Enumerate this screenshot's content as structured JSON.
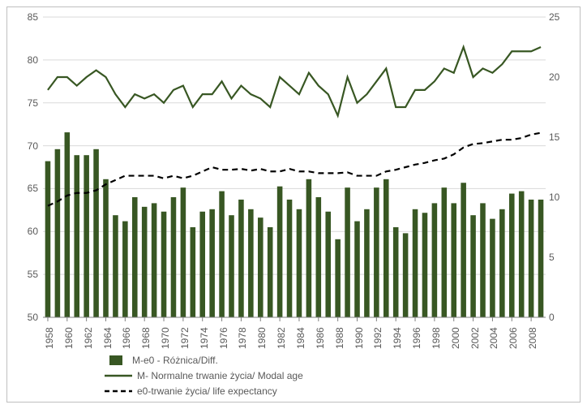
{
  "chart": {
    "type": "bar+line_dual_axis",
    "background_color": "#ffffff",
    "border_color": "#bfbfbf",
    "grid_color": "#d9d9d9",
    "axis_font_color": "#595959",
    "axis_font_size": 12,
    "left_axis": {
      "min": 50,
      "max": 85,
      "step": 5
    },
    "right_axis": {
      "min": 0,
      "max": 25,
      "step": 5
    },
    "years": [
      1958,
      1959,
      1960,
      1961,
      1962,
      1963,
      1964,
      1965,
      1966,
      1967,
      1968,
      1969,
      1970,
      1971,
      1972,
      1973,
      1974,
      1975,
      1976,
      1977,
      1978,
      1979,
      1980,
      1981,
      1982,
      1983,
      1984,
      1985,
      1986,
      1987,
      1988,
      1989,
      1990,
      1991,
      1992,
      1993,
      1994,
      1995,
      1996,
      1997,
      1998,
      1999,
      2000,
      2001,
      2002,
      2003,
      2004,
      2005,
      2006,
      2007,
      2008,
      2009
    ],
    "x_ticks": [
      1958,
      1960,
      1962,
      1964,
      1966,
      1968,
      1970,
      1972,
      1974,
      1976,
      1978,
      1980,
      1982,
      1984,
      1986,
      1988,
      1990,
      1992,
      1994,
      1996,
      1998,
      2000,
      2002,
      2004,
      2006,
      2008
    ],
    "series": {
      "bars": {
        "name_key": "legend.bars",
        "color": "#385723",
        "axis": "right",
        "bar_width_frac": 0.55,
        "values": [
          13.0,
          14.0,
          15.4,
          13.5,
          13.5,
          14.0,
          11.5,
          8.5,
          8.0,
          10.0,
          9.2,
          9.5,
          8.8,
          10.0,
          10.8,
          7.5,
          8.8,
          9.0,
          10.5,
          8.5,
          9.8,
          9.0,
          8.3,
          7.5,
          10.9,
          9.8,
          9.0,
          11.5,
          10.0,
          8.8,
          6.5,
          10.8,
          8.0,
          9.0,
          10.8,
          11.5,
          7.5,
          7.0,
          9.0,
          8.7,
          9.5,
          10.8,
          9.5,
          11.2,
          8.5,
          9.5,
          8.2,
          9.0,
          10.3,
          10.5,
          9.8,
          9.8
        ]
      },
      "modal_age": {
        "name_key": "legend.modal",
        "color": "#385723",
        "axis": "left",
        "line_width": 2.2,
        "values": [
          76.5,
          78.0,
          78.0,
          77.0,
          78.0,
          78.8,
          78.0,
          76.0,
          74.5,
          76.0,
          75.5,
          76.0,
          75.0,
          76.5,
          77.0,
          74.5,
          76.0,
          76.0,
          77.5,
          75.5,
          77.0,
          76.0,
          75.5,
          74.5,
          78.0,
          77.0,
          76.0,
          78.5,
          77.0,
          76.0,
          73.5,
          78.0,
          75.0,
          76.0,
          77.5,
          79.0,
          74.5,
          74.5,
          76.5,
          76.5,
          77.5,
          79.0,
          78.5,
          81.5,
          78.0,
          79.0,
          78.5,
          79.5,
          81.0,
          81.0,
          81.0,
          81.5
        ]
      },
      "life_expectancy": {
        "name_key": "legend.life",
        "color": "#000000",
        "axis": "left",
        "line_width": 2.2,
        "dash": "7,5",
        "values": [
          63.0,
          63.5,
          64.2,
          64.5,
          64.5,
          64.8,
          65.5,
          66.0,
          66.5,
          66.5,
          66.5,
          66.5,
          66.2,
          66.5,
          66.2,
          66.5,
          67.0,
          67.5,
          67.2,
          67.2,
          67.3,
          67.1,
          67.3,
          67.0,
          67.0,
          67.3,
          67.0,
          67.0,
          66.8,
          66.8,
          66.8,
          66.9,
          66.5,
          66.5,
          66.5,
          67.0,
          67.2,
          67.5,
          67.8,
          68.0,
          68.3,
          68.5,
          69.0,
          69.8,
          70.2,
          70.3,
          70.5,
          70.7,
          70.7,
          70.9,
          71.3,
          71.5
        ]
      }
    },
    "legend": {
      "bars": "M-e0 - Różnica/Diff.",
      "modal": "M- Normalne trwanie życia/ Modal age",
      "life": "e0-trwanie życia/ life expectancy"
    }
  }
}
